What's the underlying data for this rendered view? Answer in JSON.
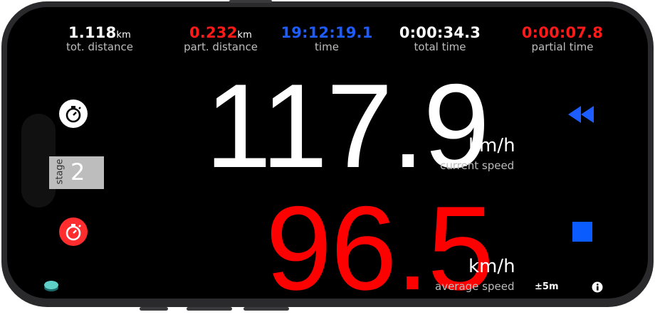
{
  "stats": {
    "tot_distance": {
      "value": "1.118",
      "unit": "km",
      "label": "tot. distance"
    },
    "part_distance": {
      "value": "0.232",
      "unit": "km",
      "label": "part. distance"
    },
    "time": {
      "value": "19:12:19.1",
      "label": "time"
    },
    "total_time": {
      "value": "0:00:34.3",
      "label": "total time"
    },
    "partial_time": {
      "value": "0:00:07.8",
      "label": "partial time"
    }
  },
  "current_speed": {
    "value": "117.9",
    "unit": "km/h",
    "label": "current speed"
  },
  "average_speed": {
    "value": "96.5",
    "unit": "km/h",
    "label": "average speed"
  },
  "stage": {
    "label": "stage",
    "number": "2"
  },
  "gps_accuracy": "±5m",
  "icons": {
    "stopwatch": "stopwatch-icon",
    "stopwatch_reset": "stopwatch-red-icon",
    "rewind": "rewind-icon",
    "stop": "stop-icon",
    "info": "info-icon",
    "status_light": "status-light-icon"
  },
  "colors": {
    "accent_red": "#ff1a1a",
    "accent_blue": "#1d5cff",
    "background": "#000000"
  }
}
